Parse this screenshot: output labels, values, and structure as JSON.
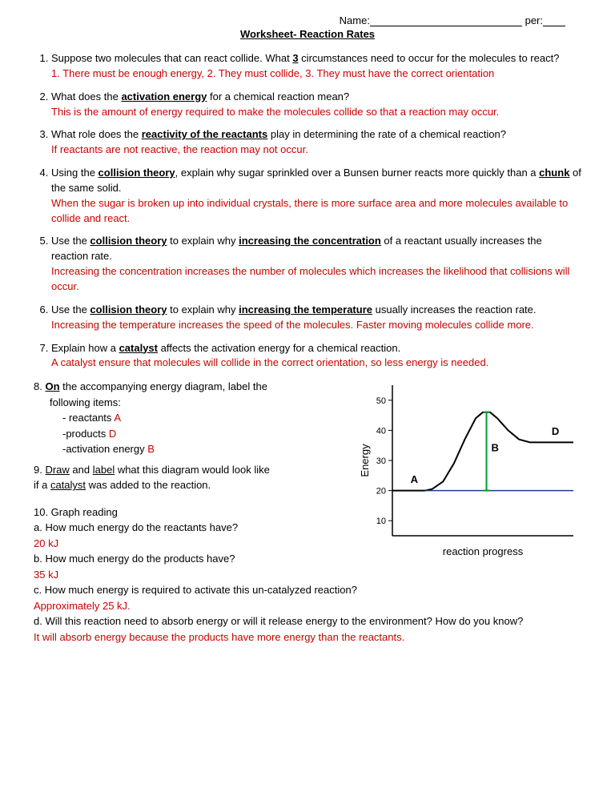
{
  "header": {
    "name_label": "Name:",
    "per_label": "per:"
  },
  "title": "Worksheet- Reaction Rates",
  "q1": {
    "text_a": "Suppose two molecules that can react collide.  What ",
    "three": "3",
    "text_b": " circumstances need to occur for the molecules to react?",
    "answer": "1. There must be enough energy, 2.  They must collide, 3. They must have the correct orientation"
  },
  "q2": {
    "text_a": "What does the ",
    "term": "activation energy",
    "text_b": " for a chemical reaction mean?",
    "answer": "This is the amount of energy required to make the molecules collide so that a reaction may occur."
  },
  "q3": {
    "text_a": "What role does the ",
    "term": "reactivity of the reactants",
    "text_b": " play in determining the rate of a chemical reaction?",
    "answer": "If reactants are not reactive, the reaction may not occur."
  },
  "q4": {
    "text_a": "Using the ",
    "term1": "collision theory",
    "text_b": ", explain why sugar sprinkled over a Bunsen burner  reacts more quickly than a ",
    "term2": "chunk",
    "text_c": " of the same solid.",
    "answer": "When the sugar is broken up into individual crystals, there is more surface area and more molecules available to collide and react."
  },
  "q5": {
    "text_a": "Use the ",
    "term1": "collision theory",
    "text_b": " to explain why ",
    "term2": "increasing the concentration",
    "text_c": " of a reactant usually increases the reaction rate.",
    "answer": "Increasing the concentration increases the number of molecules which increases the likelihood that collisions will occur."
  },
  "q6": {
    "text_a": "Use the ",
    "term1": "collision theory",
    "text_b": " to explain why ",
    "term2": "increasing the temperature",
    "text_c": " usually increases the reaction rate.",
    "answer": "Increasing the temperature increases the speed of the molecules.  Faster moving molecules collide more."
  },
  "q7": {
    "text_a": "Explain how a ",
    "term": "catalyst",
    "text_b": " affects the activation energy for a chemical reaction.",
    "answer": "A catalyst ensure that molecules will collide in the correct orientation, so less energy is needed."
  },
  "q8": {
    "num": "8.  ",
    "on": "On",
    "text_a": " the accompanying energy diagram, label   the",
    "text_b": "following items:",
    "item1_a": "- reactants ",
    "item1_b": "A",
    "item2_a": "-products ",
    "item2_b": "D",
    "item3_a": "-activation energy ",
    "item3_b": "B"
  },
  "q9": {
    "num": "9.  ",
    "draw": "Draw",
    "and": " and ",
    "label": "label",
    "text_a": " what this diagram would look like",
    "text_b": "if a ",
    "catalyst": "catalyst",
    "text_c": " was added to the reaction."
  },
  "q10": {
    "num": "10.  Graph reading",
    "a": "a.  How much energy do the reactants have?",
    "a_ans": "20 kJ",
    "b": "b.  How much energy do the products have?",
    "b_ans": " 35 kJ",
    "c": "c.  How much energy is required to activate this un-catalyzed reaction?",
    "c_ans": "Approximately 25 kJ.",
    "d": "d.  Will this reaction need to absorb energy or will it release energy to the environment?  How do you know?",
    "d_ans": "It will absorb energy because the products have more energy than the reactants."
  },
  "chart": {
    "y_label": "Energy",
    "x_label": "reaction progress",
    "y_ticks": [
      "10",
      "20",
      "30",
      "40",
      "50"
    ],
    "y_tick_vals": [
      10,
      20,
      30,
      40,
      50
    ],
    "y_range": [
      5,
      55
    ],
    "curve_color": "#000000",
    "curve_width": 2,
    "b_line_color": "#009933",
    "b_line_width": 2,
    "baseline_color": "#1a3d8f",
    "baseline_width": 1.5,
    "label_A": "A",
    "label_B": "B",
    "label_D": "D",
    "label_font": "Arial",
    "label_fontsize": 13,
    "tick_fontsize": 11,
    "axis_fontsize": 13,
    "background": "#ffffff"
  }
}
